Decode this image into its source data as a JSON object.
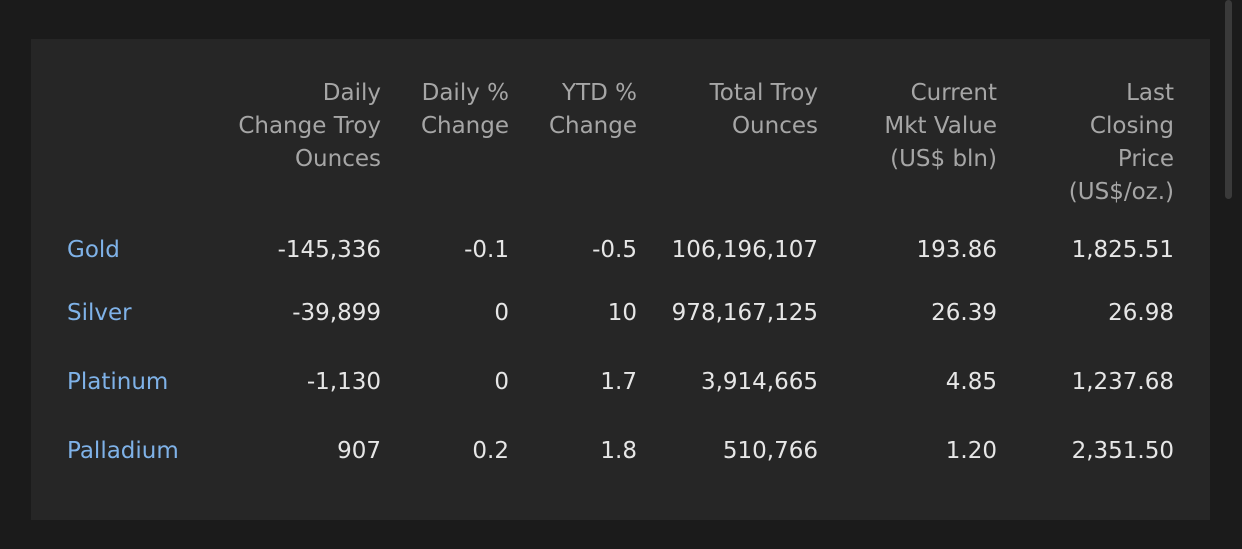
{
  "table": {
    "headers": [
      "",
      "Daily Change Troy Ounces",
      "Daily % Change",
      "YTD % Change",
      "Total Troy Ounces",
      "Current Mkt Value (US$ bln)",
      "Last Closing Price (US$/oz.)"
    ],
    "header_lines": [
      [],
      [
        "Daily",
        "Change Troy",
        "Ounces"
      ],
      [
        "Daily %",
        "Change"
      ],
      [
        "YTD %",
        "Change"
      ],
      [
        "Total Troy",
        "Ounces"
      ],
      [
        "Current",
        "Mkt Value",
        "(US$ bln)"
      ],
      [
        "Last",
        "Closing",
        "Price",
        "(US$/oz.)"
      ]
    ],
    "rows": [
      {
        "metal": "Gold",
        "cells": [
          "-145,336",
          "-0.1",
          "-0.5",
          "106,196,107",
          "193.86",
          "1,825.51"
        ]
      },
      {
        "metal": "Silver",
        "cells": [
          "-39,899",
          "0",
          "10",
          "978,167,125",
          "26.39",
          "26.98"
        ]
      },
      {
        "metal": "Platinum",
        "cells": [
          "-1,130",
          "0",
          "1.7",
          "3,914,665",
          "4.85",
          "1,237.68"
        ]
      },
      {
        "metal": "Palladium",
        "cells": [
          "907",
          "0.2",
          "1.8",
          "510,766",
          "1.20",
          "2,351.50"
        ]
      }
    ]
  },
  "colors": {
    "page_background": "#1b1b1b",
    "panel_background": "#262626",
    "header_text": "#a6a6a6",
    "value_text": "#e6e6e6",
    "link_text": "#7fb2e8"
  }
}
